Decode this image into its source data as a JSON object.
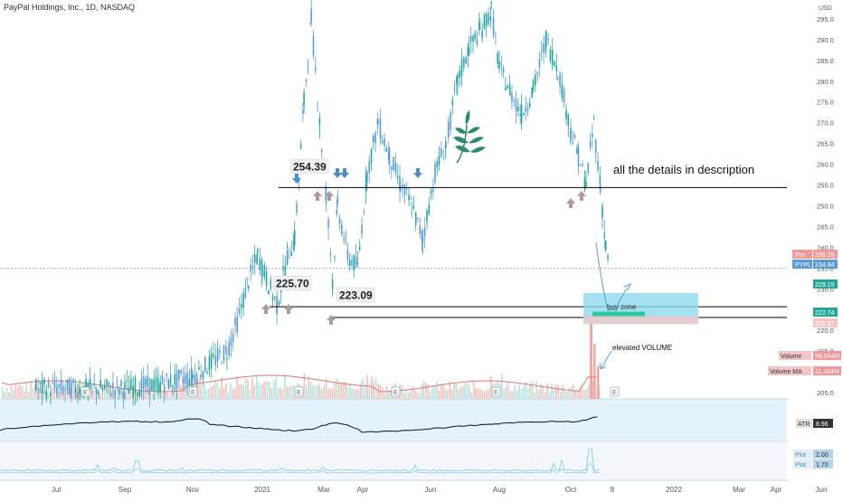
{
  "header": {
    "symbol": "PayPal Holdings, Inc., 1D, NASDAQ",
    "currency": "USD"
  },
  "chart_data": {
    "type": "candlestick",
    "y_ticks": [
      295,
      290,
      285,
      280,
      275,
      270,
      265,
      260,
      255,
      250,
      245,
      240,
      235,
      230,
      225,
      220,
      215,
      210,
      205
    ],
    "ylim": [
      203.5,
      296.5
    ],
    "x_labels": [
      "Jul",
      "Sep",
      "Nov",
      "2021",
      "Mar",
      "Apr",
      "Jun",
      "Aug",
      "Oct",
      "8",
      "2022",
      "Mar",
      "Apr",
      "Jun"
    ],
    "price_series": [
      [
        "2020-07",
        206
      ],
      [
        "2020-09",
        206
      ],
      [
        "2020-10",
        207
      ],
      [
        "2020-11",
        209
      ],
      [
        "2020-12",
        215
      ],
      [
        "2020-12-10",
        222
      ],
      [
        "2020-12-20",
        232
      ],
      [
        "2020-12-28",
        238
      ],
      [
        "2021-01",
        235
      ],
      [
        "2021-01-15",
        226
      ],
      [
        "2021-01-25",
        238
      ],
      [
        "2021-02-01",
        242
      ],
      [
        "2021-02-10",
        275
      ],
      [
        "2021-02-17",
        295
      ],
      [
        "2021-02-25",
        270
      ],
      [
        "2021-03-03",
        252
      ],
      [
        "2021-03-08",
        232
      ],
      [
        "2021-03-12",
        250
      ],
      [
        "2021-03-20",
        238
      ],
      [
        "2021-03-28",
        235
      ],
      [
        "2021-04-05",
        258
      ],
      [
        "2021-04-15",
        270
      ],
      [
        "2021-04-25",
        262
      ],
      [
        "2021-05-05",
        255
      ],
      [
        "2021-05-15",
        250
      ],
      [
        "2021-05-25",
        242
      ],
      [
        "2021-06-05",
        258
      ],
      [
        "2021-06-15",
        265
      ],
      [
        "2021-06-25",
        280
      ],
      [
        "2021-07-05",
        288
      ],
      [
        "2021-07-15",
        292
      ],
      [
        "2021-07-25",
        297
      ],
      [
        "2021-08-01",
        283
      ],
      [
        "2021-08-10",
        278
      ],
      [
        "2021-08-20",
        272
      ],
      [
        "2021-08-30",
        278
      ],
      [
        "2021-09-10",
        290
      ],
      [
        "2021-09-20",
        283
      ],
      [
        "2021-10-01",
        268
      ],
      [
        "2021-10-08",
        262
      ],
      [
        "2021-10-15",
        255
      ],
      [
        "2021-10-22",
        270
      ],
      [
        "2021-10-28",
        255
      ],
      [
        "2021-11-02",
        240
      ],
      [
        "2021-11-05",
        235
      ]
    ],
    "horizontal_levels": [
      254.39,
      225.7,
      223.09
    ],
    "level_labels": [
      "254.39",
      "225.70",
      "223.09"
    ],
    "buy_zone": {
      "label": "buy zone",
      "top": 229.0,
      "bottom": 221.5
    },
    "annotations": {
      "description": "all the details in description",
      "volume_note": "elevated VOLUME"
    },
    "price_tags": [
      {
        "label": "Pre",
        "value": "235.79",
        "color": "#ef9a9a"
      },
      {
        "label": "PYPL",
        "value": "234.94",
        "color": "#5b9bd5"
      },
      {
        "label": "",
        "value": "229.15",
        "color": "#26a69a"
      },
      {
        "label": "",
        "value": "222.74",
        "color": "#26a69a"
      },
      {
        "label": "",
        "value": "221.37",
        "color": "#f3c6c6"
      }
    ],
    "volume_tags": [
      {
        "label": "Volume",
        "value": "59.044M",
        "color": "#ef9a9a"
      },
      {
        "label": "Volume MA",
        "value": "11.424M",
        "color": "#ef9a9a"
      }
    ],
    "atr": {
      "label": "ATR",
      "value": "8.96"
    },
    "plot_tags": [
      {
        "label": "Plot",
        "value": "2.00"
      },
      {
        "label": "Plot",
        "value": "1.70"
      }
    ],
    "colors": {
      "up": "#26a69a",
      "down": "#5b9bd5",
      "level": "#000000",
      "buy_zone": "#4dd0e1",
      "arrow_up": "#b09aa0",
      "arrow_down": "#4a90c8",
      "logo": "#2e8b6a"
    }
  }
}
